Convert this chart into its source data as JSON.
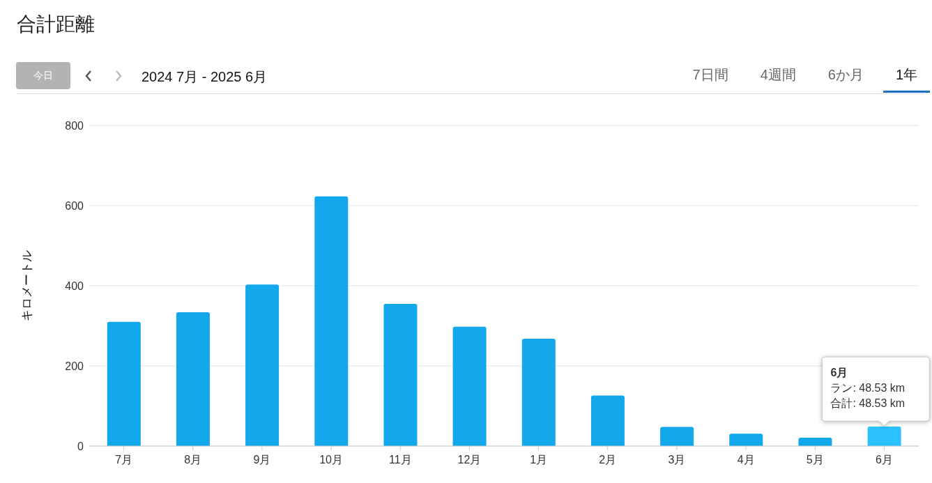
{
  "chart_data": {
    "type": "bar",
    "title": "合計距離",
    "subtitle": "2024 7月 - 2025 6月",
    "ylabel": "キロメートル",
    "categories": [
      "7月",
      "8月",
      "9月",
      "10月",
      "11月",
      "12月",
      "1月",
      "2月",
      "3月",
      "4月",
      "5月",
      "6月"
    ],
    "values": [
      310,
      334,
      403,
      623,
      355,
      298,
      268,
      126,
      48,
      31,
      21,
      48.53
    ],
    "colors": [
      "#12a8eb",
      "#12a8eb",
      "#12a8eb",
      "#12a8eb",
      "#12a8eb",
      "#12a8eb",
      "#12a8eb",
      "#12a8eb",
      "#12a8eb",
      "#12a8eb",
      "#12a8eb",
      "#2bc1fd"
    ],
    "ylim": [
      0,
      800
    ],
    "yticks": [
      0,
      200,
      400,
      600,
      800
    ],
    "grid": "y",
    "annotations": [
      "今日",
      "7日間",
      "4週間",
      "6か月",
      "1年",
      "6月",
      "ラン: 48.53 km",
      "合計: 48.53 km"
    ]
  }
}
